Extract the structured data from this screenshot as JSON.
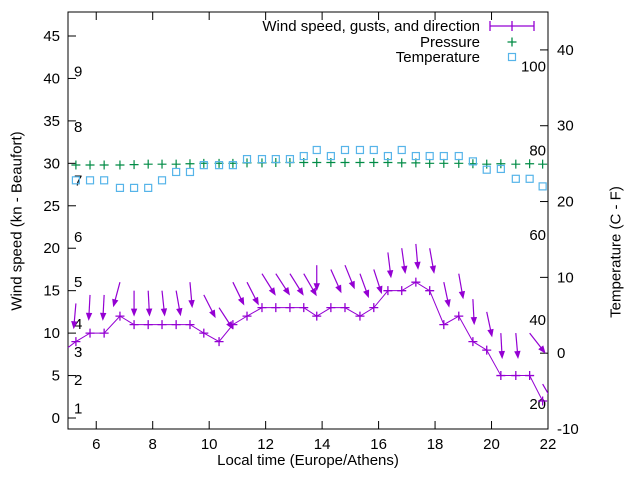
{
  "legend": {
    "entries": [
      {
        "label": "Wind speed, gusts, and direction",
        "marker": "errorbar",
        "color": "#9400d3"
      },
      {
        "label": "Pressure",
        "marker": "plus",
        "color": "#008b45"
      },
      {
        "label": "Temperature",
        "marker": "square",
        "color": "#56b4e9"
      }
    ]
  },
  "chart_data": {
    "type": "line",
    "xlabel": "Local time (Europe/Athens)",
    "ylabel_left": "Wind speed (kn - Beaufort)",
    "ylabel_right": "Temperature (C - F)",
    "x_range": [
      5,
      22
    ],
    "y_left_range_kn": [
      0,
      45
    ],
    "y_right_range_c": [
      -10,
      45
    ],
    "x_ticks": [
      6,
      8,
      10,
      12,
      14,
      16,
      18,
      20,
      22
    ],
    "y_left_ticks": [
      0,
      5,
      10,
      15,
      20,
      25,
      30,
      35,
      40,
      45
    ],
    "y_right_ticks": [
      -10,
      0,
      10,
      20,
      30,
      40
    ],
    "beaufort_inner_labels": [
      {
        "text": "1",
        "kn": 1.1
      },
      {
        "text": "2",
        "kn": 4.5
      },
      {
        "text": "3",
        "kn": 7.8
      },
      {
        "text": "4",
        "kn": 11.1
      },
      {
        "text": "5",
        "kn": 16.0
      },
      {
        "text": "6",
        "kn": 21.3
      },
      {
        "text": "7",
        "kn": 28.0
      },
      {
        "text": "8",
        "kn": 34.3
      },
      {
        "text": "9",
        "kn": 40.8
      }
    ],
    "fahrenheit_inner_labels": [
      {
        "text": "20",
        "c": -6.7
      },
      {
        "text": "40",
        "c": 4.4
      },
      {
        "text": "60",
        "c": 15.6
      },
      {
        "text": "80",
        "c": 26.7
      },
      {
        "text": "100",
        "c": 37.8
      }
    ],
    "x_hours": [
      5.28,
      5.78,
      6.28,
      6.84,
      7.34,
      7.84,
      8.33,
      8.83,
      9.32,
      9.81,
      10.35,
      10.84,
      11.34,
      11.87,
      12.36,
      12.86,
      13.35,
      13.81,
      14.31,
      14.81,
      15.34,
      15.83,
      16.33,
      16.82,
      17.32,
      17.81,
      18.31,
      18.84,
      19.34,
      19.83,
      20.33,
      20.86,
      21.35,
      21.81
    ],
    "series": [
      {
        "name": "Wind speed",
        "axis": "left",
        "unit": "kn",
        "color": "#9400d3",
        "marker": "plus",
        "line": true,
        "lead_in": {
          "x": 5.0,
          "value": 8.3
        },
        "values": [
          9,
          10,
          10,
          12,
          11,
          11,
          11,
          11,
          11,
          10,
          9,
          11,
          12,
          13,
          13,
          13,
          13,
          12,
          13,
          13,
          12,
          13,
          15,
          15,
          16,
          15,
          11,
          12,
          9,
          8,
          5,
          5,
          5,
          2
        ]
      },
      {
        "name": "Wind gusts with direction arrows",
        "axis": "left",
        "unit": "kn",
        "color": "#9400d3",
        "marker": "arrow",
        "values": [
          13.5,
          14.5,
          14.5,
          16,
          15,
          15,
          15,
          15,
          16,
          14.5,
          13,
          16,
          16,
          17,
          17,
          17,
          17,
          18,
          17.5,
          18,
          17,
          17.5,
          19.5,
          20,
          20.5,
          20,
          16,
          17,
          14,
          12.5,
          10,
          10,
          10,
          4
        ],
        "direction_deg_from_down": [
          -5,
          -3,
          -3,
          -15,
          0,
          3,
          6,
          10,
          5,
          27,
          33,
          26,
          27,
          32,
          33,
          32,
          30,
          0,
          24,
          22,
          20,
          18,
          7,
          8,
          5,
          10,
          12,
          10,
          3,
          12,
          3,
          5,
          38,
          30
        ]
      },
      {
        "name": "Pressure",
        "axis": "left",
        "unit": "inHg",
        "color": "#008b45",
        "marker": "plus",
        "values": [
          29.8,
          29.8,
          29.8,
          29.8,
          29.85,
          29.9,
          29.9,
          29.9,
          29.95,
          30.0,
          30.0,
          30.0,
          30.05,
          30.05,
          30.1,
          30.1,
          30.1,
          30.1,
          30.1,
          30.1,
          30.1,
          30.1,
          30.1,
          30.05,
          30.05,
          30.0,
          30.0,
          30.0,
          29.95,
          29.9,
          29.95,
          29.9,
          29.95,
          29.9
        ]
      },
      {
        "name": "Temperature",
        "axis": "right",
        "unit": "C",
        "color": "#56b4e9",
        "marker": "square",
        "values": [
          22.8,
          22.8,
          22.8,
          21.8,
          21.8,
          21.8,
          22.8,
          23.9,
          23.9,
          24.8,
          24.8,
          24.8,
          25.6,
          25.6,
          25.6,
          25.6,
          26.0,
          26.8,
          26.0,
          26.8,
          26.8,
          26.8,
          26.0,
          26.8,
          26.0,
          26.0,
          26.0,
          26.0,
          25.3,
          24.2,
          24.3,
          23.0,
          23.0,
          22.0
        ]
      }
    ]
  }
}
